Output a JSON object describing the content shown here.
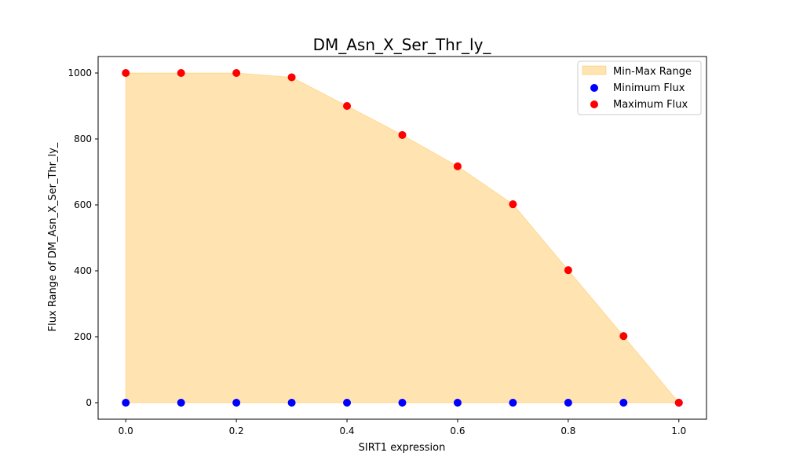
{
  "chart_data": {
    "type": "scatter",
    "title": "DM_Asn_X_Ser_Thr_ly_",
    "xlabel": "SIRT1 expression",
    "ylabel": "Flux Range of DM_Asn_X_Ser_Thr_ly_",
    "x": [
      0.0,
      0.1,
      0.2,
      0.3,
      0.4,
      0.5,
      0.6,
      0.7,
      0.8,
      0.9,
      1.0
    ],
    "series": [
      {
        "name": "Minimum Flux",
        "color": "#0000ff",
        "values": [
          0,
          0,
          0,
          0,
          0,
          0,
          0,
          0,
          0,
          0,
          0
        ]
      },
      {
        "name": "Maximum Flux",
        "color": "#ff0000",
        "values": [
          1000,
          1000,
          1000,
          987,
          900,
          812,
          717,
          602,
          402,
          202,
          0
        ]
      }
    ],
    "fill": {
      "name": "Min-Max Range",
      "color": "#ffa500"
    },
    "xlim": [
      -0.05,
      1.05
    ],
    "ylim": [
      -50,
      1050
    ],
    "xticks": [
      0.0,
      0.2,
      0.4,
      0.6,
      0.8,
      1.0
    ],
    "xtick_labels": [
      "0.0",
      "0.2",
      "0.4",
      "0.6",
      "0.8",
      "1.0"
    ],
    "yticks": [
      0,
      200,
      400,
      600,
      800,
      1000
    ],
    "ytick_labels": [
      "0",
      "200",
      "400",
      "600",
      "800",
      "1000"
    ],
    "grid": false,
    "legend_position": "top-right"
  }
}
